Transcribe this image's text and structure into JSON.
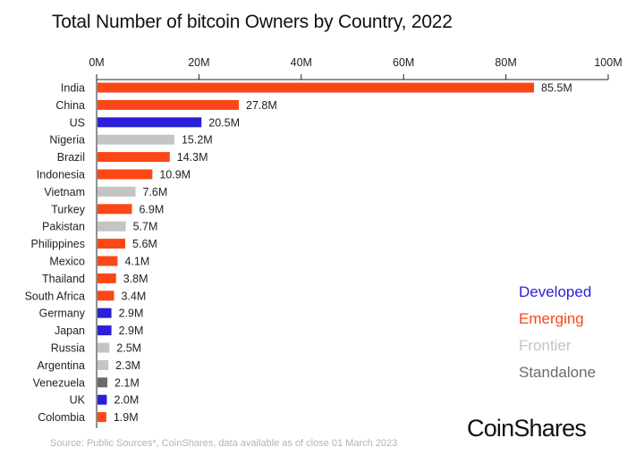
{
  "chart_data": {
    "type": "bar",
    "orientation": "horizontal",
    "title": "Total Number of bitcoin Owners by Country, 2022",
    "xlim": [
      0,
      100
    ],
    "x_ticks": [
      0,
      20,
      40,
      60,
      80,
      100
    ],
    "x_tick_labels": [
      "0M",
      "20M",
      "40M",
      "60M",
      "80M",
      "100M"
    ],
    "categories": [
      "India",
      "China",
      "US",
      "Nigeria",
      "Brazil",
      "Indonesia",
      "Vietnam",
      "Turkey",
      "Pakistan",
      "Philippines",
      "Mexico",
      "Thailand",
      "South Africa",
      "Germany",
      "Japan",
      "Russia",
      "Argentina",
      "Venezuela",
      "UK",
      "Colombia"
    ],
    "values": [
      85.5,
      27.8,
      20.5,
      15.2,
      14.3,
      10.9,
      7.6,
      6.9,
      5.7,
      5.6,
      4.1,
      3.8,
      3.4,
      2.9,
      2.9,
      2.5,
      2.3,
      2.1,
      2.0,
      1.9
    ],
    "value_labels": [
      "85.5M",
      "27.8M",
      "20.5M",
      "15.2M",
      "14.3M",
      "10.9M",
      "7.6M",
      "6.9M",
      "5.7M",
      "5.6M",
      "4.1M",
      "3.8M",
      "3.4M",
      "2.9M",
      "2.9M",
      "2.5M",
      "2.3M",
      "2.1M",
      "2.0M",
      "1.9M"
    ],
    "groups": [
      "Emerging",
      "Emerging",
      "Developed",
      "Frontier",
      "Emerging",
      "Emerging",
      "Frontier",
      "Emerging",
      "Frontier",
      "Emerging",
      "Emerging",
      "Emerging",
      "Emerging",
      "Developed",
      "Developed",
      "Frontier",
      "Frontier",
      "Standalone",
      "Developed",
      "Emerging"
    ],
    "legend": [
      {
        "name": "Developed",
        "color": "#2a1fd6"
      },
      {
        "name": "Emerging",
        "color": "#fb4716"
      },
      {
        "name": "Frontier",
        "color": "#c4c4c4"
      },
      {
        "name": "Standalone",
        "color": "#6b6b6b"
      }
    ],
    "legend_position": "bottom-right",
    "grid": false
  },
  "brand": {
    "name": "CoinShares"
  },
  "source": "Source: Public Sources*, CoinShares, data available as of close 01 March 2023"
}
